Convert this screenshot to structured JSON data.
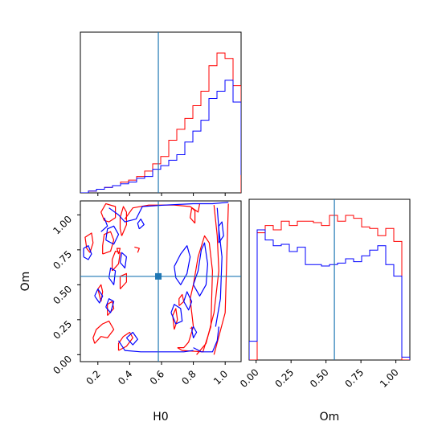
{
  "chart_data": {
    "type": "corner",
    "parameters": [
      "H0",
      "Om"
    ],
    "axis_labels": {
      "h0": "H0",
      "om": "Om"
    },
    "truth": {
      "H0": 0.58,
      "Om": 0.56
    },
    "colors": {
      "series_red": "#ff0000",
      "series_blue": "#0000ff",
      "truth": "#1f77b4"
    },
    "ranges": {
      "H0": [
        0.09,
        1.1
      ],
      "Om": [
        -0.05,
        1.1
      ]
    },
    "ticks": {
      "H0": {
        "values": [
          0.2,
          0.4,
          0.6,
          0.8,
          1.0
        ],
        "labels": [
          "0.2",
          "0.4",
          "0.6",
          "0.8",
          "1.0"
        ]
      },
      "Om": {
        "values": [
          0.0,
          0.25,
          0.5,
          0.75,
          1.0
        ],
        "labels": [
          "0.00",
          "0.25",
          "0.50",
          "0.75",
          "1.00"
        ]
      }
    },
    "hist_h0": {
      "bin_start": 0.09,
      "bin_width": 0.0505,
      "red": [
        0,
        0.01,
        0.02,
        0.03,
        0.04,
        0.06,
        0.07,
        0.09,
        0.12,
        0.16,
        0.2,
        0.29,
        0.35,
        0.41,
        0.48,
        0.56,
        0.7,
        0.77,
        0.74,
        0.59,
        0
      ],
      "blue": [
        0,
        0.01,
        0.02,
        0.03,
        0.04,
        0.05,
        0.06,
        0.08,
        0.09,
        0.13,
        0.15,
        0.18,
        0.21,
        0.28,
        0.34,
        0.4,
        0.52,
        0.56,
        0.62,
        0.5,
        0.1
      ]
    },
    "hist_om": {
      "bin_start": -0.05,
      "bin_width": 0.0575,
      "red": [
        0,
        0.88,
        0.93,
        0.9,
        0.96,
        0.93,
        0.96,
        0.96,
        0.95,
        0.93,
        1.0,
        0.96,
        1.0,
        0.98,
        0.92,
        0.91,
        0.86,
        0.91,
        0.82,
        0.0
      ],
      "blue": [
        0.13,
        0.9,
        0.83,
        0.79,
        0.8,
        0.75,
        0.78,
        0.66,
        0.66,
        0.65,
        0.66,
        0.67,
        0.7,
        0.68,
        0.72,
        0.76,
        0.79,
        0.66,
        0.58,
        0.02
      ]
    },
    "contours_red": [
      [
        [
          0.24,
          0.96
        ],
        [
          0.22,
          1.02
        ],
        [
          0.25,
          1.08
        ],
        [
          0.31,
          1.06
        ],
        [
          0.31,
          0.98
        ],
        [
          0.27,
          0.95
        ],
        [
          0.24,
          0.96
        ]
      ],
      [
        [
          0.15,
          0.73
        ],
        [
          0.17,
          0.8
        ],
        [
          0.16,
          0.87
        ],
        [
          0.12,
          0.84
        ],
        [
          0.13,
          0.76
        ],
        [
          0.15,
          0.73
        ]
      ],
      [
        [
          0.23,
          0.72
        ],
        [
          0.28,
          0.74
        ],
        [
          0.3,
          0.82
        ],
        [
          0.28,
          0.88
        ],
        [
          0.24,
          0.86
        ],
        [
          0.23,
          0.78
        ],
        [
          0.23,
          0.72
        ]
      ],
      [
        [
          0.35,
          0.85
        ],
        [
          0.38,
          0.93
        ],
        [
          0.38,
          1.02
        ],
        [
          0.36,
          1.06
        ],
        [
          0.34,
          0.98
        ],
        [
          0.34,
          0.9
        ],
        [
          0.35,
          0.85
        ]
      ],
      [
        [
          0.29,
          0.6
        ],
        [
          0.33,
          0.65
        ],
        [
          0.34,
          0.73
        ],
        [
          0.31,
          0.74
        ],
        [
          0.29,
          0.68
        ],
        [
          0.29,
          0.6
        ]
      ],
      [
        [
          0.34,
          0.47
        ],
        [
          0.38,
          0.52
        ],
        [
          0.38,
          0.58
        ],
        [
          0.34,
          0.56
        ],
        [
          0.34,
          0.47
        ]
      ],
      [
        [
          0.22,
          0.38
        ],
        [
          0.23,
          0.45
        ],
        [
          0.22,
          0.5
        ],
        [
          0.2,
          0.47
        ],
        [
          0.22,
          0.38
        ]
      ],
      [
        [
          0.26,
          0.28
        ],
        [
          0.3,
          0.33
        ],
        [
          0.29,
          0.38
        ],
        [
          0.26,
          0.36
        ],
        [
          0.26,
          0.28
        ]
      ],
      [
        [
          0.18,
          0.08
        ],
        [
          0.22,
          0.13
        ],
        [
          0.26,
          0.12
        ],
        [
          0.3,
          0.18
        ],
        [
          0.27,
          0.24
        ],
        [
          0.23,
          0.22
        ],
        [
          0.19,
          0.18
        ],
        [
          0.17,
          0.12
        ],
        [
          0.18,
          0.08
        ]
      ],
      [
        [
          0.33,
          0.03
        ],
        [
          0.38,
          0.06
        ],
        [
          0.42,
          0.12
        ],
        [
          0.4,
          0.16
        ],
        [
          0.36,
          0.13
        ],
        [
          0.33,
          0.08
        ],
        [
          0.33,
          0.03
        ]
      ],
      [
        [
          0.37,
          0.97
        ],
        [
          0.42,
          1.05
        ],
        [
          0.52,
          1.07
        ],
        [
          0.68,
          1.07
        ],
        [
          0.78,
          1.06
        ],
        [
          0.83,
          1.02
        ],
        [
          0.84,
          1.08
        ]
      ],
      [
        [
          0.93,
          0.0
        ],
        [
          1.0,
          0.3
        ],
        [
          1.01,
          0.7
        ],
        [
          1.02,
          1.08
        ]
      ],
      [
        [
          0.82,
          0.0
        ],
        [
          0.88,
          0.08
        ],
        [
          0.93,
          0.3
        ],
        [
          0.96,
          0.6
        ],
        [
          0.95,
          0.85
        ],
        [
          0.93,
          1.07
        ]
      ],
      [
        [
          0.7,
          0.05
        ],
        [
          0.73,
          0.03
        ],
        [
          0.86,
          0.02
        ],
        [
          0.91,
          0.2
        ],
        [
          0.92,
          0.6
        ],
        [
          0.9,
          0.8
        ],
        [
          0.87,
          0.85
        ],
        [
          0.83,
          0.7
        ],
        [
          0.8,
          0.5
        ],
        [
          0.78,
          0.4
        ],
        [
          0.8,
          0.2
        ],
        [
          0.77,
          0.09
        ],
        [
          0.74,
          0.05
        ],
        [
          0.7,
          0.05
        ]
      ],
      [
        [
          0.68,
          0.18
        ],
        [
          0.7,
          0.25
        ],
        [
          0.69,
          0.33
        ],
        [
          0.67,
          0.28
        ],
        [
          0.68,
          0.18
        ]
      ],
      [
        [
          0.71,
          0.35
        ],
        [
          0.74,
          0.38
        ],
        [
          0.73,
          0.43
        ],
        [
          0.71,
          0.4
        ],
        [
          0.71,
          0.35
        ]
      ],
      [
        [
          0.81,
          0.94
        ],
        [
          0.81,
          1.03
        ],
        [
          0.79,
          1.05
        ],
        [
          0.78,
          0.98
        ],
        [
          0.81,
          0.94
        ]
      ],
      [
        [
          0.43,
          0.77
        ],
        [
          0.46,
          0.76
        ],
        [
          0.45,
          0.73
        ]
      ],
      [
        [
          0.78,
          0.19
        ],
        [
          0.79,
          0.19
        ],
        [
          0.79,
          0.2
        ]
      ],
      [
        [
          0.33,
          0.72
        ],
        [
          0.34,
          0.76
        ],
        [
          0.32,
          0.76
        ],
        [
          0.33,
          0.72
        ]
      ]
    ],
    "contours_blue": [
      [
        [
          0.11,
          0.7
        ],
        [
          0.14,
          0.68
        ],
        [
          0.16,
          0.72
        ],
        [
          0.14,
          0.78
        ],
        [
          0.11,
          0.76
        ],
        [
          0.11,
          0.7
        ]
      ],
      [
        [
          0.18,
          0.42
        ],
        [
          0.21,
          0.37
        ],
        [
          0.23,
          0.42
        ],
        [
          0.2,
          0.47
        ],
        [
          0.18,
          0.42
        ]
      ],
      [
        [
          0.25,
          0.34
        ],
        [
          0.28,
          0.3
        ],
        [
          0.3,
          0.38
        ],
        [
          0.27,
          0.4
        ],
        [
          0.25,
          0.34
        ]
      ],
      [
        [
          0.27,
          0.55
        ],
        [
          0.3,
          0.5
        ],
        [
          0.31,
          0.6
        ],
        [
          0.28,
          0.62
        ],
        [
          0.27,
          0.55
        ]
      ],
      [
        [
          0.34,
          0.66
        ],
        [
          0.37,
          0.62
        ],
        [
          0.38,
          0.7
        ],
        [
          0.35,
          0.73
        ],
        [
          0.34,
          0.66
        ]
      ],
      [
        [
          0.25,
          0.82
        ],
        [
          0.3,
          0.79
        ],
        [
          0.33,
          0.86
        ],
        [
          0.3,
          0.92
        ],
        [
          0.26,
          0.9
        ],
        [
          0.25,
          0.82
        ]
      ],
      [
        [
          0.22,
          0.88
        ],
        [
          0.26,
          0.92
        ],
        [
          0.24,
          0.98
        ]
      ],
      [
        [
          0.27,
          1.05
        ],
        [
          0.33,
          1.0
        ],
        [
          0.37,
          0.95
        ],
        [
          0.44,
          0.97
        ],
        [
          0.48,
          1.06
        ],
        [
          0.62,
          1.07
        ],
        [
          0.8,
          1.08
        ],
        [
          0.92,
          1.08
        ],
        [
          1.02,
          1.09
        ]
      ],
      [
        [
          0.33,
          0.1
        ],
        [
          0.37,
          0.03
        ],
        [
          0.47,
          0.02
        ],
        [
          0.6,
          0.02
        ],
        [
          0.74,
          0.02
        ],
        [
          0.8,
          0.03
        ]
      ],
      [
        [
          0.38,
          0.12
        ],
        [
          0.42,
          0.07
        ],
        [
          0.45,
          0.11
        ],
        [
          0.42,
          0.16
        ],
        [
          0.38,
          0.12
        ]
      ],
      [
        [
          0.68,
          0.63
        ],
        [
          0.72,
          0.72
        ],
        [
          0.76,
          0.78
        ],
        [
          0.78,
          0.7
        ],
        [
          0.76,
          0.58
        ],
        [
          0.72,
          0.5
        ],
        [
          0.69,
          0.55
        ],
        [
          0.68,
          0.63
        ]
      ],
      [
        [
          0.66,
          0.3
        ],
        [
          0.69,
          0.22
        ],
        [
          0.73,
          0.24
        ],
        [
          0.72,
          0.33
        ],
        [
          0.68,
          0.36
        ],
        [
          0.66,
          0.3
        ]
      ],
      [
        [
          0.74,
          0.38
        ],
        [
          0.77,
          0.32
        ],
        [
          0.79,
          0.38
        ],
        [
          0.76,
          0.45
        ],
        [
          0.74,
          0.38
        ]
      ],
      [
        [
          0.8,
          0.5
        ],
        [
          0.83,
          0.6
        ],
        [
          0.85,
          0.75
        ],
        [
          0.87,
          0.8
        ],
        [
          0.89,
          0.65
        ],
        [
          0.88,
          0.5
        ],
        [
          0.84,
          0.42
        ],
        [
          0.8,
          0.5
        ]
      ],
      [
        [
          0.79,
          0.18
        ],
        [
          0.8,
          0.12
        ],
        [
          0.82,
          0.16
        ],
        [
          0.8,
          0.2
        ],
        [
          0.79,
          0.18
        ]
      ],
      [
        [
          0.94,
          0.2
        ],
        [
          0.97,
          0.4
        ],
        [
          0.98,
          0.7
        ],
        [
          0.96,
          0.9
        ],
        [
          0.95,
          1.05
        ]
      ],
      [
        [
          0.8,
          0.05
        ],
        [
          0.85,
          0.02
        ],
        [
          0.92,
          0.02
        ],
        [
          0.95,
          0.1
        ],
        [
          0.96,
          0.2
        ]
      ],
      [
        [
          0.46,
          0.9
        ],
        [
          0.49,
          0.93
        ],
        [
          0.47,
          0.97
        ],
        [
          0.45,
          0.94
        ],
        [
          0.46,
          0.9
        ]
      ],
      [
        [
          0.96,
          0.8
        ],
        [
          0.99,
          0.85
        ],
        [
          0.98,
          0.95
        ],
        [
          0.96,
          0.92
        ],
        [
          0.96,
          0.8
        ]
      ]
    ]
  }
}
